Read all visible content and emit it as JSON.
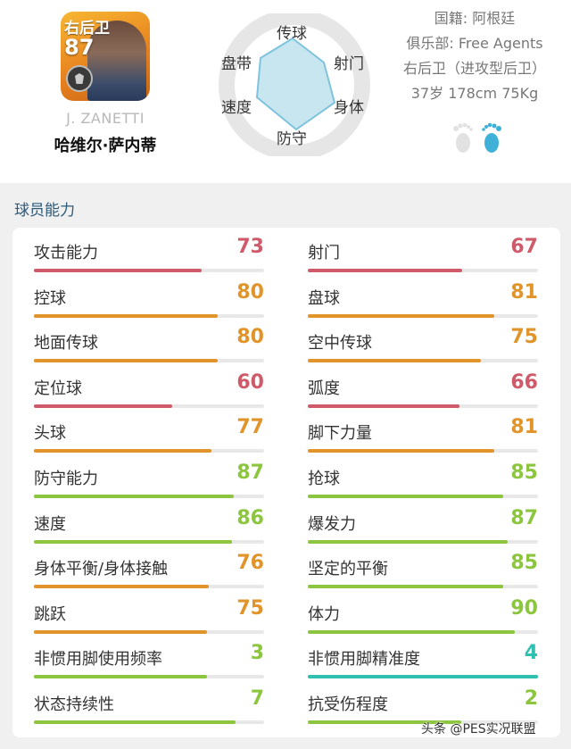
{
  "player": {
    "card_position": "右后卫",
    "card_rating": "87",
    "name_en": "J. ZANETTI",
    "name_cn": "哈维尔·萨内蒂"
  },
  "radar": {
    "labels": {
      "top": "传球",
      "upper_right": "射门",
      "right": "身体",
      "bottom": "防守",
      "left": "速度",
      "upper_left": "盘带"
    },
    "fill_color": "#c8e6f0",
    "stroke_color": "#7fc4dc"
  },
  "info": {
    "nationality": "国籍: 阿根廷",
    "club": "俱乐部: Free Agents",
    "position": "右后卫（进攻型后卫）",
    "physical": "37岁 178cm 75Kg"
  },
  "feet": {
    "left_icon": "left-foot-icon",
    "right_icon": "right-foot-icon",
    "preferred": "right"
  },
  "section_title": "球员能力",
  "colors": {
    "red": "#cf5b6a",
    "orange": "#e0942a",
    "green": "#8cc63f",
    "teal": "#2fc0b0"
  },
  "stats_left": [
    {
      "label": "攻击能力",
      "value": "73",
      "tier": "red"
    },
    {
      "label": "控球",
      "value": "80",
      "tier": "orange"
    },
    {
      "label": "地面传球",
      "value": "80",
      "tier": "orange"
    },
    {
      "label": "定位球",
      "value": "60",
      "tier": "red"
    },
    {
      "label": "头球",
      "value": "77",
      "tier": "orange"
    },
    {
      "label": "防守能力",
      "value": "87",
      "tier": "green"
    },
    {
      "label": "速度",
      "value": "86",
      "tier": "green"
    },
    {
      "label": "身体平衡/身体接触",
      "value": "76",
      "tier": "orange"
    },
    {
      "label": "跳跃",
      "value": "75",
      "tier": "orange"
    },
    {
      "label": "非惯用脚使用频率",
      "value": "3",
      "tier": "green",
      "max": 4
    },
    {
      "label": "状态持续性",
      "value": "7",
      "tier": "green",
      "max": 8
    }
  ],
  "stats_right": [
    {
      "label": "射门",
      "value": "67",
      "tier": "red"
    },
    {
      "label": "盘球",
      "value": "81",
      "tier": "orange"
    },
    {
      "label": "空中传球",
      "value": "75",
      "tier": "orange"
    },
    {
      "label": "弧度",
      "value": "66",
      "tier": "red"
    },
    {
      "label": "脚下力量",
      "value": "81",
      "tier": "orange"
    },
    {
      "label": "抢球",
      "value": "85",
      "tier": "green"
    },
    {
      "label": "爆发力",
      "value": "87",
      "tier": "green"
    },
    {
      "label": "坚定的平衡",
      "value": "85",
      "tier": "green"
    },
    {
      "label": "体力",
      "value": "90",
      "tier": "green"
    },
    {
      "label": "非惯用脚精准度",
      "value": "4",
      "tier": "teal",
      "max": 4
    },
    {
      "label": "抗受伤程度",
      "value": "2",
      "tier": "green",
      "max": 3
    }
  ],
  "watermark": "头条 @PES实况联盟"
}
